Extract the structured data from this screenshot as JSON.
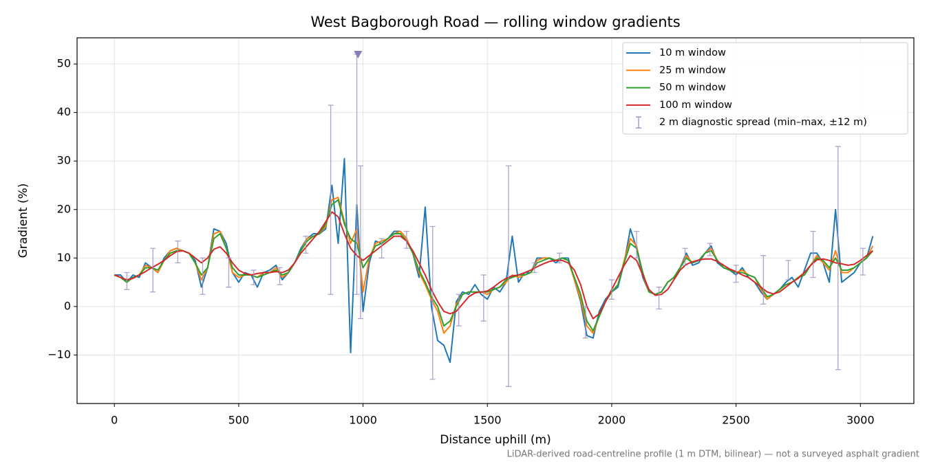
{
  "chart_data": {
    "type": "line",
    "title": "West Bagborough Road — rolling window gradients",
    "xlabel": "Distance uphill (m)",
    "ylabel": "Gradient (%)",
    "footnote": "LiDAR-derived road-centreline profile (1 m DTM, bilinear) — not a surveyed asphalt gradient",
    "xlim": [
      -150,
      3215
    ],
    "ylim": [
      -20,
      55.4
    ],
    "xticks": [
      0,
      500,
      1000,
      1500,
      2000,
      2500,
      3000
    ],
    "yticks": [
      {
        "value": -10,
        "label": "−10"
      },
      0,
      10,
      20,
      30,
      40,
      50
    ],
    "grid": true,
    "legend": "upper right",
    "x": [
      0,
      25,
      50,
      75,
      100,
      125,
      150,
      175,
      200,
      225,
      250,
      275,
      300,
      325,
      350,
      375,
      400,
      425,
      450,
      475,
      500,
      525,
      550,
      575,
      600,
      625,
      650,
      675,
      700,
      725,
      750,
      775,
      800,
      825,
      850,
      875,
      900,
      925,
      950,
      975,
      1000,
      1025,
      1050,
      1075,
      1100,
      1125,
      1150,
      1175,
      1200,
      1225,
      1250,
      1275,
      1300,
      1325,
      1350,
      1375,
      1400,
      1425,
      1450,
      1475,
      1500,
      1525,
      1550,
      1575,
      1600,
      1625,
      1650,
      1675,
      1700,
      1725,
      1750,
      1775,
      1800,
      1825,
      1850,
      1875,
      1900,
      1925,
      1950,
      1975,
      2000,
      2025,
      2050,
      2075,
      2100,
      2125,
      2150,
      2175,
      2200,
      2225,
      2250,
      2275,
      2300,
      2325,
      2350,
      2375,
      2400,
      2425,
      2450,
      2475,
      2500,
      2525,
      2550,
      2575,
      2600,
      2625,
      2650,
      2675,
      2700,
      2725,
      2750,
      2775,
      2800,
      2825,
      2850,
      2875,
      2900,
      2925,
      2950,
      2975,
      3000,
      3025,
      3050
    ],
    "series": [
      {
        "name": "10 m window",
        "color": "#1f77b4",
        "values": [
          6.5,
          6.5,
          5,
          6.5,
          6,
          9,
          8,
          7,
          10,
          11.5,
          12,
          11.5,
          11,
          9.5,
          4,
          8,
          16,
          15.5,
          13,
          7,
          5,
          7,
          6.5,
          4,
          7,
          7.5,
          8.5,
          5.5,
          7,
          9,
          12,
          14,
          15,
          15,
          16,
          25,
          13,
          30.5,
          -9.5,
          21,
          -1,
          9,
          13.5,
          13,
          14,
          15.5,
          15.5,
          14,
          11,
          6,
          20.5,
          0,
          -7,
          -8,
          -11.5,
          1,
          3,
          2.5,
          4.5,
          2.5,
          1.5,
          4,
          3,
          5,
          14.5,
          5,
          7,
          7,
          10,
          10,
          10,
          9,
          10,
          10,
          5.5,
          1,
          -6,
          -6.5,
          -1,
          1.5,
          3,
          4,
          9,
          16,
          12,
          6,
          3,
          2.5,
          3,
          5,
          6,
          8,
          11,
          8.5,
          9,
          11,
          12.5,
          9,
          8,
          7.5,
          6.5,
          8,
          6,
          5,
          3,
          1.5,
          2.5,
          3.5,
          5,
          6,
          4,
          7.5,
          11,
          11,
          9,
          5,
          20,
          5,
          6,
          7,
          9,
          10,
          14.5
        ]
      },
      {
        "name": "25 m window",
        "color": "#ff7f0e",
        "values": [
          6.5,
          6,
          5,
          6,
          6.5,
          8.5,
          8,
          7,
          9.5,
          11.5,
          12,
          11.5,
          11,
          9,
          5.5,
          8,
          15,
          15.5,
          12,
          7,
          6,
          6.5,
          6.5,
          6,
          7,
          7,
          8,
          6,
          7,
          9,
          11.5,
          14,
          14.5,
          15,
          16.5,
          22,
          22.5,
          17.5,
          13,
          16,
          3,
          10,
          13,
          13.5,
          14,
          15,
          15.5,
          14,
          11,
          7,
          4.5,
          1.5,
          -1,
          -5.5,
          -4,
          0.5,
          2.5,
          3,
          3,
          3,
          2.5,
          3.5,
          4,
          5,
          6.5,
          6,
          6.5,
          7,
          9.5,
          10,
          10,
          9.5,
          10,
          9.5,
          5.5,
          1.5,
          -4,
          -5.5,
          -2,
          1,
          3,
          4.5,
          9.5,
          14,
          12.5,
          6.5,
          3,
          2.5,
          3,
          5,
          6,
          8,
          10.5,
          9,
          9.5,
          11,
          12,
          9.5,
          8,
          7.5,
          7,
          7.5,
          6.5,
          6,
          3.5,
          1.5,
          2.5,
          3.5,
          4.5,
          5,
          6,
          7,
          8.5,
          10.5,
          9,
          7.5,
          11.5,
          7,
          7,
          8,
          9,
          10,
          12.5
        ]
      },
      {
        "name": "50 m window",
        "color": "#2ca02c",
        "values": [
          6.5,
          6,
          5,
          6,
          6.5,
          8,
          8,
          7.5,
          9.5,
          11,
          11.5,
          11.5,
          11,
          9,
          6.5,
          8,
          14,
          15,
          12,
          8,
          6.5,
          6.5,
          6.5,
          6,
          6.5,
          7,
          7.5,
          6.5,
          7,
          9,
          11.5,
          13.5,
          14.5,
          15,
          17,
          21,
          22,
          17,
          14,
          13,
          8,
          10,
          12.5,
          13,
          14,
          15,
          15,
          13.5,
          11,
          7.5,
          5,
          2,
          0,
          -4,
          -3,
          0,
          2.5,
          3,
          3,
          3,
          3,
          3.5,
          4,
          5.5,
          6,
          6.5,
          6.5,
          7,
          9,
          9.5,
          10,
          9.5,
          10,
          9.5,
          6,
          2.5,
          -3,
          -5,
          -2,
          1,
          3,
          4.5,
          9,
          13,
          12,
          7,
          3,
          2.5,
          3,
          5,
          6,
          8,
          10,
          9,
          9.5,
          11,
          11.5,
          9.5,
          8,
          7.5,
          7,
          7,
          6.5,
          6,
          4,
          2,
          2.5,
          3.5,
          4.5,
          5,
          6,
          6.5,
          8.5,
          10,
          9.5,
          8,
          10,
          7.5,
          7.5,
          8,
          9,
          10,
          11.5
        ]
      },
      {
        "name": "100 m window",
        "color": "#d62728",
        "values": [
          6.5,
          6,
          5.5,
          5.8,
          6.5,
          7.2,
          8,
          8.7,
          9.5,
          10.5,
          11.3,
          11.5,
          11,
          10,
          9,
          10,
          11.8,
          12.3,
          11,
          9,
          7.5,
          6.8,
          6.5,
          6.8,
          7,
          7,
          7.2,
          7,
          7.5,
          9,
          11,
          12.5,
          14,
          15.5,
          17.5,
          19.5,
          18.5,
          15,
          12,
          10.5,
          9.5,
          10.5,
          11.5,
          12.5,
          13.5,
          14.5,
          14.5,
          13.5,
          11.5,
          9,
          6.5,
          3.5,
          1,
          -1,
          -1.5,
          -1,
          0.5,
          2,
          2.8,
          3,
          3.2,
          4,
          5,
          5.8,
          6.3,
          6.5,
          7,
          7.5,
          8.2,
          8.8,
          9.3,
          9.5,
          9.5,
          9,
          7.5,
          4.5,
          0,
          -2.5,
          -1.5,
          1,
          3.5,
          6,
          8.5,
          10.5,
          9.5,
          6.5,
          3.5,
          2.3,
          2.5,
          3.5,
          5.5,
          7.5,
          8.7,
          9.2,
          9.6,
          9.8,
          9.8,
          9.3,
          8.5,
          7.7,
          7.2,
          6.5,
          6,
          5,
          4,
          3,
          2.6,
          3,
          4,
          5,
          5.8,
          7,
          8.5,
          9.6,
          9.8,
          9.5,
          9,
          8.8,
          8.5,
          8.7,
          9.5,
          10.5,
          11.5
        ]
      }
    ],
    "errorbars": {
      "name": "2 m diagnostic spread (min–max, ±12 m)",
      "color": "#9d92c2",
      "x": [
        50,
        155,
        255,
        355,
        460,
        560,
        665,
        770,
        870,
        975,
        990,
        1075,
        1175,
        1280,
        1385,
        1485,
        1585,
        1690,
        1790,
        1895,
        2000,
        2100,
        2190,
        2295,
        2395,
        2500,
        2610,
        2710,
        2810,
        2910,
        3010
      ],
      "low": [
        3.5,
        3,
        9,
        2.5,
        4,
        4.5,
        4.5,
        11,
        2.5,
        2.5,
        -2.5,
        10,
        12,
        -15,
        -4,
        -3,
        -16.5,
        7,
        9,
        -6.5,
        1.5,
        10,
        -0.5,
        8.5,
        10.5,
        5,
        0.5,
        5.5,
        6,
        -13,
        6.5
      ],
      "high": [
        7,
        12,
        13.5,
        10,
        10,
        7.5,
        8,
        14.5,
        41.5,
        52,
        29,
        14,
        15.5,
        16.5,
        2.5,
        6.5,
        29,
        9,
        11,
        0,
        5.5,
        15.5,
        4,
        12,
        13,
        8.5,
        10.5,
        9.5,
        15.5,
        33,
        12
      ]
    },
    "clip_markers": {
      "color": "#8a7db5",
      "x": [
        980
      ],
      "y": [
        52
      ]
    }
  }
}
